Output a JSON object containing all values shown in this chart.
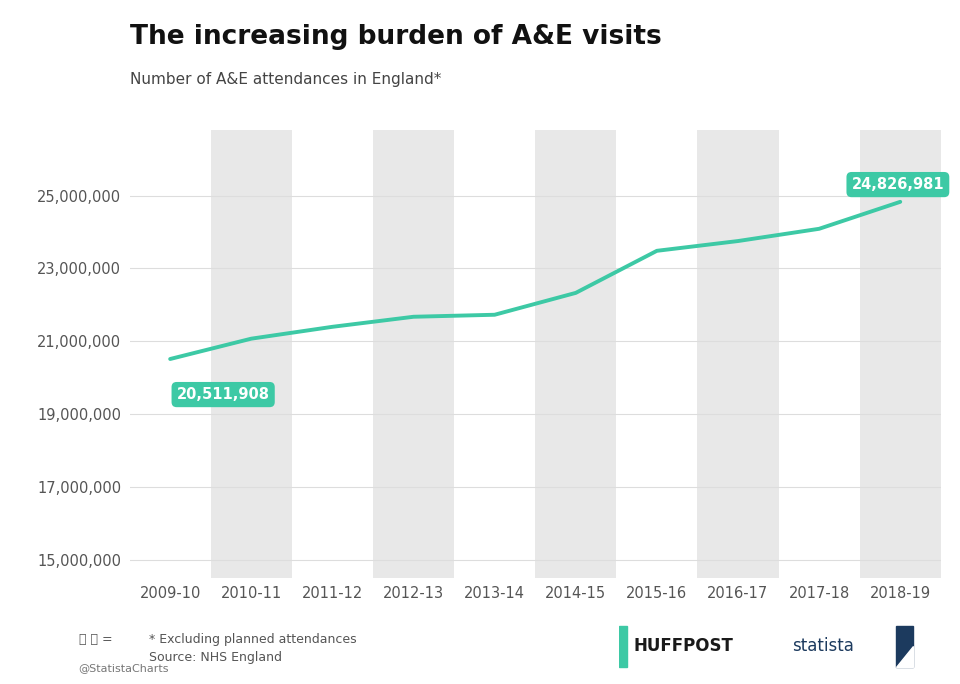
{
  "title": "The increasing burden of A&E visits",
  "subtitle": "Number of A&E attendances in England¹",
  "subtitle_plain": "Number of A&E attendances in England*",
  "categories": [
    "2009-10",
    "2010-11",
    "2011-12",
    "2012-13",
    "2013-14",
    "2014-15",
    "2015-16",
    "2016-17",
    "2017-18",
    "2018-19"
  ],
  "values": [
    20511908,
    21069970,
    21395641,
    21671565,
    21726617,
    22327239,
    23482098,
    23750364,
    24086378,
    24826981
  ],
  "line_color": "#3dc9a5",
  "background_color": "#ffffff",
  "plot_bg_color": "#ffffff",
  "band_color": "#e8e8e8",
  "tick_color": "#555555",
  "title_color": "#111111",
  "subtitle_color": "#444444",
  "annotation_first_label": "20,511,908",
  "annotation_last_label": "24,826,981",
  "annotation_bg_color": "#3dc9a5",
  "annotation_text_color": "#ffffff",
  "ylim_min": 14500000,
  "ylim_max": 26800000,
  "yticks": [
    15000000,
    17000000,
    19000000,
    21000000,
    23000000,
    25000000
  ],
  "ytick_labels": [
    "15,000,000",
    "17,000,000",
    "19,000,000",
    "21,000,000",
    "23,000,000",
    "25,000,000"
  ],
  "footnote_line1": "* Excluding planned attendances",
  "footnote_line2": "Source: NHS England",
  "source_label": "@StatistaCharts",
  "grid_color": "#dddddd",
  "line_width": 2.8
}
